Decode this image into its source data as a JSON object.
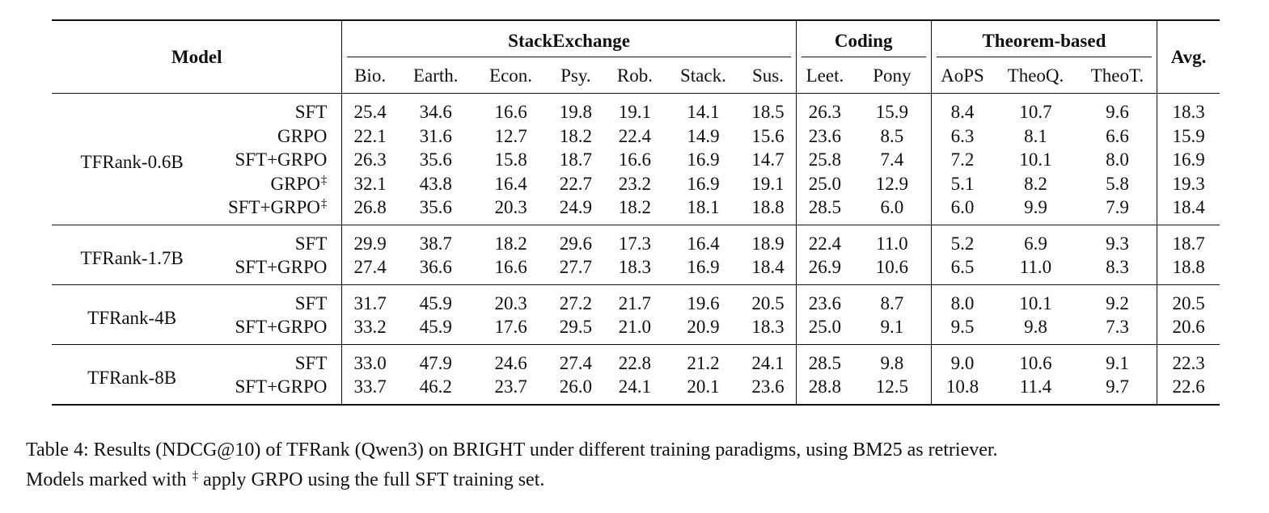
{
  "header": {
    "model": "Model",
    "groups": {
      "stackexchange": "StackExchange",
      "coding": "Coding",
      "theorem": "Theorem-based",
      "avg": "Avg."
    },
    "columns": [
      "Bio.",
      "Earth.",
      "Econ.",
      "Psy.",
      "Rob.",
      "Stack.",
      "Sus.",
      "Leet.",
      "Pony",
      "AoPS",
      "TheoQ.",
      "TheoT."
    ]
  },
  "dagger": "‡",
  "blocks": [
    {
      "model": "TFRank-0.6B",
      "rows": [
        {
          "variant": "SFT",
          "values": [
            "25.4",
            "34.6",
            "16.6",
            "19.8",
            "19.1",
            "14.1",
            "18.5",
            "26.3",
            "15.9",
            "8.4",
            "10.7",
            "9.6"
          ],
          "avg": "18.3"
        },
        {
          "variant": "GRPO",
          "values": [
            "22.1",
            "31.6",
            "12.7",
            "18.2",
            "22.4",
            "14.9",
            "15.6",
            "23.6",
            "8.5",
            "6.3",
            "8.1",
            "6.6"
          ],
          "avg": "15.9"
        },
        {
          "variant": "SFT+GRPO",
          "values": [
            "26.3",
            "35.6",
            "15.8",
            "18.7",
            "16.6",
            "16.9",
            "14.7",
            "25.8",
            "7.4",
            "7.2",
            "10.1",
            "8.0"
          ],
          "avg": "16.9"
        },
        {
          "variant": "GRPO",
          "values": [
            "32.1",
            "43.8",
            "16.4",
            "22.7",
            "23.2",
            "16.9",
            "19.1",
            "25.0",
            "12.9",
            "5.1",
            "8.2",
            "5.8"
          ],
          "avg": "19.3"
        },
        {
          "variant": "SFT+GRPO",
          "values": [
            "26.8",
            "35.6",
            "20.3",
            "24.9",
            "18.2",
            "18.1",
            "18.8",
            "28.5",
            "6.0",
            "6.0",
            "9.9",
            "7.9"
          ],
          "avg": "18.4"
        }
      ]
    },
    {
      "model": "TFRank-1.7B",
      "rows": [
        {
          "variant": "SFT",
          "values": [
            "29.9",
            "38.7",
            "18.2",
            "29.6",
            "17.3",
            "16.4",
            "18.9",
            "22.4",
            "11.0",
            "5.2",
            "6.9",
            "9.3"
          ],
          "avg": "18.7"
        },
        {
          "variant": "SFT+GRPO",
          "values": [
            "27.4",
            "36.6",
            "16.6",
            "27.7",
            "18.3",
            "16.9",
            "18.4",
            "26.9",
            "10.6",
            "6.5",
            "11.0",
            "8.3"
          ],
          "avg": "18.8"
        }
      ]
    },
    {
      "model": "TFRank-4B",
      "rows": [
        {
          "variant": "SFT",
          "values": [
            "31.7",
            "45.9",
            "20.3",
            "27.2",
            "21.7",
            "19.6",
            "20.5",
            "23.6",
            "8.7",
            "8.0",
            "10.1",
            "9.2"
          ],
          "avg": "20.5"
        },
        {
          "variant": "SFT+GRPO",
          "values": [
            "33.2",
            "45.9",
            "17.6",
            "29.5",
            "21.0",
            "20.9",
            "18.3",
            "25.0",
            "9.1",
            "9.5",
            "9.8",
            "7.3"
          ],
          "avg": "20.6"
        }
      ]
    },
    {
      "model": "TFRank-8B",
      "rows": [
        {
          "variant": "SFT",
          "values": [
            "33.0",
            "47.9",
            "24.6",
            "27.4",
            "22.8",
            "21.2",
            "24.1",
            "28.5",
            "9.8",
            "9.0",
            "10.6",
            "9.1"
          ],
          "avg": "22.3"
        },
        {
          "variant": "SFT+GRPO",
          "values": [
            "33.7",
            "46.2",
            "23.7",
            "26.0",
            "24.1",
            "20.1",
            "23.6",
            "28.8",
            "12.5",
            "10.8",
            "11.4",
            "9.7"
          ],
          "avg": "22.6"
        }
      ]
    }
  ],
  "caption": {
    "line1": "Table 4: Results (NDCG@10) of TFRank (Qwen3) on BRIGHT under different training paradigms, using BM25 as retriever.",
    "line2_a": "Models marked with",
    "line2_b": "apply GRPO using the full SFT training set."
  }
}
